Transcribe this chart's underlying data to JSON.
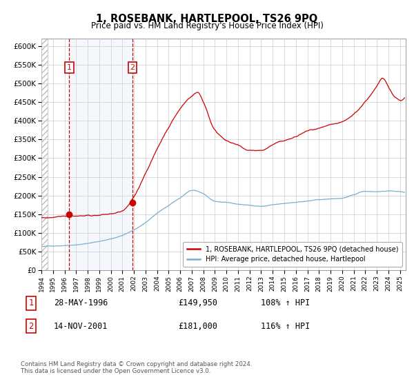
{
  "title": "1, ROSEBANK, HARTLEPOOL, TS26 9PQ",
  "subtitle": "Price paid vs. HM Land Registry's House Price Index (HPI)",
  "ylabel_ticks": [
    "£0",
    "£50K",
    "£100K",
    "£150K",
    "£200K",
    "£250K",
    "£300K",
    "£350K",
    "£400K",
    "£450K",
    "£500K",
    "£550K",
    "£600K"
  ],
  "ytick_values": [
    0,
    50000,
    100000,
    150000,
    200000,
    250000,
    300000,
    350000,
    400000,
    450000,
    500000,
    550000,
    600000
  ],
  "ylim": [
    0,
    620000
  ],
  "xlim_start": 1994.0,
  "xlim_end": 2025.5,
  "sale1_date": 1996.4,
  "sale1_price": 149950,
  "sale2_date": 2001.87,
  "sale2_price": 181000,
  "sale1_label": "1",
  "sale2_label": "2",
  "legend_property": "1, ROSEBANK, HARTLEPOOL, TS26 9PQ (detached house)",
  "legend_hpi": "HPI: Average price, detached house, Hartlepool",
  "table_row1": [
    "1",
    "28-MAY-1996",
    "£149,950",
    "108% ↑ HPI"
  ],
  "table_row2": [
    "2",
    "14-NOV-2001",
    "£181,000",
    "116% ↑ HPI"
  ],
  "footer": "Contains HM Land Registry data © Crown copyright and database right 2024.\nThis data is licensed under the Open Government Licence v3.0.",
  "property_color": "#cc0000",
  "hpi_color": "#7aadcf",
  "grid_color": "#cccccc",
  "background_color": "#ffffff",
  "shade_color": "#ddeeff",
  "hpi_knots_t": [
    1994.0,
    1995.0,
    1996.0,
    1997.0,
    1998.0,
    1999.0,
    2000.0,
    2001.0,
    2002.0,
    2003.0,
    2004.0,
    2005.0,
    2006.0,
    2007.0,
    2008.0,
    2009.0,
    2010.0,
    2011.0,
    2012.0,
    2013.0,
    2014.0,
    2015.0,
    2016.0,
    2017.0,
    2018.0,
    2019.0,
    2020.0,
    2021.0,
    2022.0,
    2023.0,
    2024.0,
    2025.0
  ],
  "hpi_knots_v": [
    63000,
    65000,
    67000,
    70000,
    74000,
    79000,
    86000,
    96000,
    110000,
    130000,
    155000,
    175000,
    195000,
    215000,
    205000,
    185000,
    182000,
    178000,
    175000,
    172000,
    175000,
    178000,
    182000,
    185000,
    188000,
    190000,
    192000,
    200000,
    210000,
    210000,
    212000,
    210000
  ],
  "prop_knots_t": [
    1994.0,
    1995.0,
    1996.0,
    1997.0,
    1998.0,
    1999.0,
    2000.0,
    2001.0,
    2002.0,
    2003.0,
    2004.0,
    2005.0,
    2006.0,
    2007.0,
    2007.5,
    2008.0,
    2009.0,
    2010.0,
    2011.0,
    2012.0,
    2013.0,
    2014.0,
    2015.0,
    2016.0,
    2017.0,
    2018.0,
    2019.0,
    2020.0,
    2021.0,
    2022.0,
    2023.0,
    2023.5,
    2024.0,
    2024.5,
    2025.0
  ],
  "prop_knots_v": [
    140000,
    143000,
    149950,
    152000,
    153000,
    155000,
    158000,
    165000,
    200000,
    265000,
    330000,
    390000,
    440000,
    475000,
    485000,
    460000,
    385000,
    360000,
    345000,
    330000,
    330000,
    345000,
    355000,
    365000,
    380000,
    385000,
    390000,
    395000,
    415000,
    450000,
    490000,
    510000,
    490000,
    465000,
    455000
  ]
}
